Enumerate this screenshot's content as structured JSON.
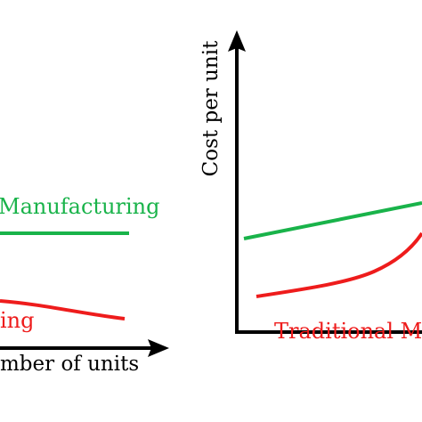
{
  "colors": {
    "axis": "#000000",
    "green_series": "#19b34a",
    "red_series": "#ee1c1c"
  },
  "left_panel": {
    "green_label": "Manufacturing",
    "red_label": "ing",
    "x_axis_label": "mber of units"
  },
  "right_panel": {
    "y_axis_label": "Cost per unit",
    "red_label": "Traditional M"
  }
}
